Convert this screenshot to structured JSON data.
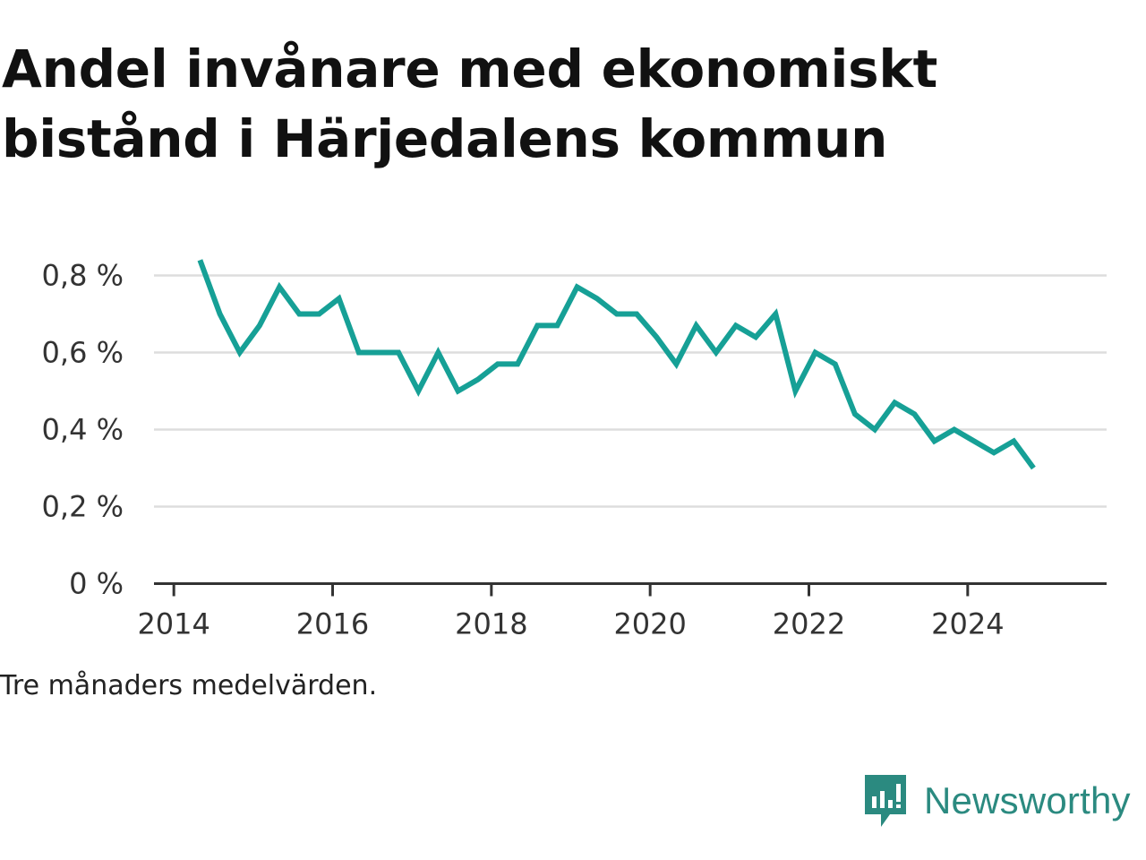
{
  "title": "Andel invånare med ekonomiskt bistånd i Härjedalens kommun",
  "caption": "Tre månaders medelvärden.",
  "brand": {
    "name": "Newsworthy",
    "color": "#2b8a80",
    "icon": "newsworthy-logo-icon"
  },
  "colors": {
    "line": "#16a096",
    "grid": "#dddddd",
    "axis": "#333333",
    "tick_text": "#333333"
  },
  "chart_data": {
    "type": "line",
    "title": "Andel invånare med ekonomiskt bistånd i Härjedalens kommun",
    "xlabel": "",
    "ylabel": "",
    "grid": true,
    "xlim": [
      2013.75,
      2025.75
    ],
    "ylim": [
      0,
      0.8
    ],
    "x_ticks": [
      2014,
      2016,
      2018,
      2020,
      2022,
      2024
    ],
    "x_tick_labels": [
      "2014",
      "2016",
      "2018",
      "2020",
      "2022",
      "2024"
    ],
    "y_ticks": [
      0,
      0.2,
      0.4,
      0.6,
      0.8
    ],
    "y_tick_labels": [
      "0 %",
      "0,2 %",
      "0,4 %",
      "0,6 %",
      "0,8 %"
    ],
    "series": [
      {
        "x": [
          2014.33,
          2014.58,
          2014.83,
          2015.08,
          2015.33,
          2015.58,
          2015.83,
          2016.08,
          2016.33,
          2016.58,
          2016.83,
          2017.08,
          2017.33,
          2017.58,
          2017.83,
          2018.08,
          2018.33,
          2018.58,
          2018.83,
          2019.08,
          2019.33,
          2019.58,
          2019.83,
          2020.08,
          2020.33,
          2020.58,
          2020.83,
          2021.08,
          2021.33,
          2021.58,
          2021.83,
          2022.08,
          2022.33,
          2022.58,
          2022.83,
          2023.08,
          2023.33,
          2023.58,
          2023.83,
          2024.08,
          2024.33,
          2024.58,
          2024.83
        ],
        "values": [
          0.84,
          0.7,
          0.6,
          0.67,
          0.77,
          0.7,
          0.7,
          0.74,
          0.6,
          0.6,
          0.6,
          0.5,
          0.6,
          0.5,
          0.53,
          0.57,
          0.57,
          0.67,
          0.67,
          0.77,
          0.74,
          0.7,
          0.7,
          0.64,
          0.57,
          0.67,
          0.6,
          0.67,
          0.64,
          0.7,
          0.5,
          0.6,
          0.57,
          0.44,
          0.4,
          0.47,
          0.44,
          0.37,
          0.4,
          0.37,
          0.34,
          0.37,
          0.3
        ]
      }
    ]
  }
}
